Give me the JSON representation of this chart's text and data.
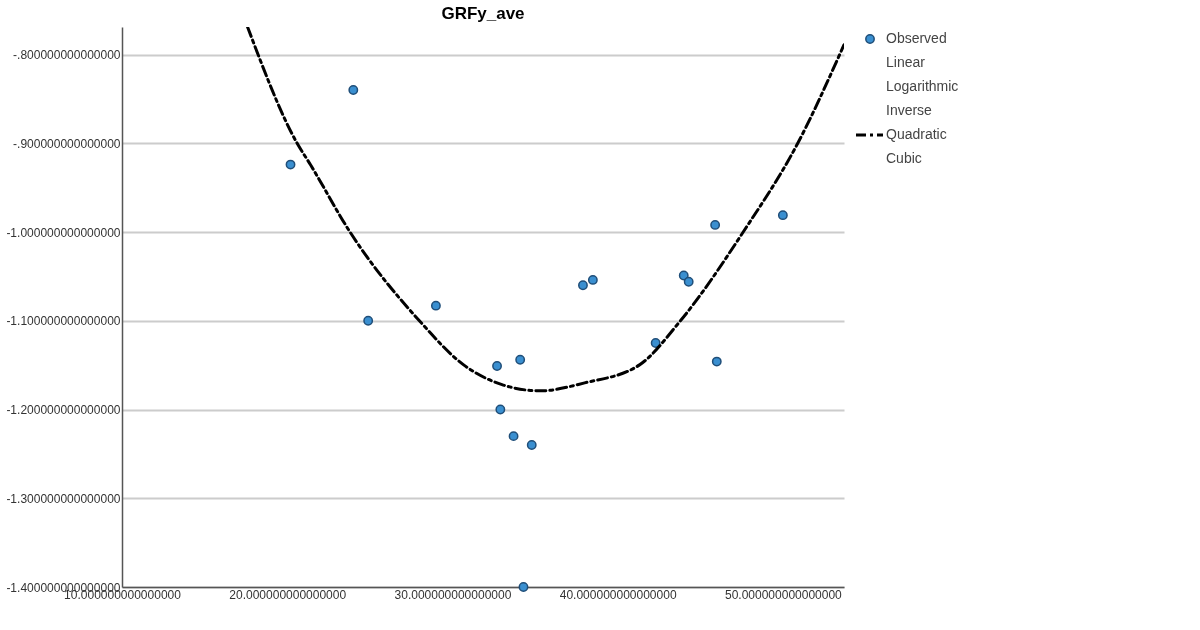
{
  "chart_data": {
    "type": "scatter",
    "title": "GRFy_ave",
    "xlim": [
      10,
      53.7
    ],
    "ylim": [
      -1.4,
      -0.769
    ],
    "xticks": [
      {
        "value": 10,
        "label": "10.000000000000000"
      },
      {
        "value": 20,
        "label": "20.000000000000000"
      },
      {
        "value": 30,
        "label": "30.000000000000000"
      },
      {
        "value": 40,
        "label": "40.000000000000000"
      },
      {
        "value": 50,
        "label": "50.000000000000000"
      }
    ],
    "yticks": [
      {
        "value": -1.4,
        "label": "-1.400000000000000"
      },
      {
        "value": -1.3,
        "label": "-1.300000000000000"
      },
      {
        "value": -1.2,
        "label": "-1.200000000000000"
      },
      {
        "value": -1.1,
        "label": "-1.100000000000000"
      },
      {
        "value": -1.0,
        "label": "-1.000000000000000"
      },
      {
        "value": -0.9,
        "label": "-.900000000000000"
      },
      {
        "value": -0.8,
        "label": "-.800000000000000"
      }
    ],
    "grid": "y",
    "legend": "right",
    "series": [
      {
        "name": "Observed",
        "marker": "circle",
        "color": "#3a8fd0",
        "x": [
          20.2,
          24.0,
          24.9,
          29.0,
          32.7,
          34.1,
          32.9,
          33.7,
          34.8,
          34.3,
          37.9,
          38.5,
          42.3,
          44.0,
          44.3,
          45.9,
          46.0,
          50.0
        ],
        "values": [
          -0.924,
          -0.84,
          -1.1,
          -1.083,
          -1.151,
          -1.144,
          -1.2,
          -1.23,
          -1.24,
          -1.4,
          -1.06,
          -1.054,
          -1.125,
          -1.049,
          -1.056,
          -0.992,
          -1.146,
          -0.981
        ]
      },
      {
        "name": "Linear"
      },
      {
        "name": "Logarithmic"
      },
      {
        "name": "Inverse"
      },
      {
        "name": "Quadratic",
        "type": "line",
        "color": "#000000",
        "line_style": "dashed",
        "x": [
          17.6,
          20.6,
          21.4,
          23.8,
          28.0,
          30.7,
          33.0,
          35.3,
          38.0,
          41.3,
          43.8,
          47.6,
          50.9,
          53.7
        ],
        "values": [
          -0.769,
          -0.9,
          -0.924,
          -1.0,
          -1.1,
          -1.15,
          -1.172,
          -1.179,
          -1.17,
          -1.15,
          -1.1,
          -1.0,
          -0.9,
          -0.789
        ]
      },
      {
        "name": "Cubic"
      }
    ]
  }
}
